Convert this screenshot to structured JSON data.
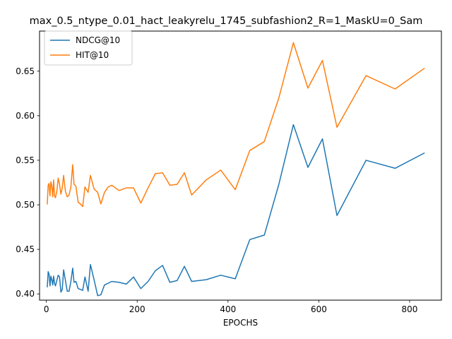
{
  "chart_data": {
    "type": "line",
    "title": "max_0.5_ntype_0.01_hact_leakyrelu_1745_subfashion2_R=1_MaskU=0_Sam",
    "xlabel": "EPOCHS",
    "ylabel": "",
    "xlim": [
      -15,
      870
    ],
    "ylim": [
      0.393,
      0.695
    ],
    "xticks": [
      0,
      200,
      400,
      600,
      800
    ],
    "yticks": [
      0.4,
      0.45,
      0.5,
      0.55,
      0.6,
      0.65
    ],
    "ytick_labels": [
      "0.40",
      "0.45",
      "0.50",
      "0.55",
      "0.60",
      "0.65"
    ],
    "grid": false,
    "legend_position": "top-left",
    "series": [
      {
        "name": "NDCG@10",
        "color": "#1f77b4",
        "points": [
          [
            2,
            0.408
          ],
          [
            4,
            0.425
          ],
          [
            6,
            0.422
          ],
          [
            8,
            0.409
          ],
          [
            10,
            0.42
          ],
          [
            12,
            0.416
          ],
          [
            14,
            0.41
          ],
          [
            16,
            0.42
          ],
          [
            18,
            0.412
          ],
          [
            20,
            0.409
          ],
          [
            23,
            0.415
          ],
          [
            26,
            0.421
          ],
          [
            29,
            0.419
          ],
          [
            32,
            0.402
          ],
          [
            35,
            0.405
          ],
          [
            38,
            0.427
          ],
          [
            42,
            0.415
          ],
          [
            46,
            0.403
          ],
          [
            50,
            0.403
          ],
          [
            54,
            0.414
          ],
          [
            58,
            0.429
          ],
          [
            61,
            0.413
          ],
          [
            65,
            0.414
          ],
          [
            70,
            0.406
          ],
          [
            75,
            0.405
          ],
          [
            80,
            0.404
          ],
          [
            85,
            0.419
          ],
          [
            92,
            0.403
          ],
          [
            97,
            0.433
          ],
          [
            105,
            0.416
          ],
          [
            113,
            0.398
          ],
          [
            120,
            0.399
          ],
          [
            128,
            0.41
          ],
          [
            144,
            0.414
          ],
          [
            160,
            0.413
          ],
          [
            176,
            0.411
          ],
          [
            192,
            0.419
          ],
          [
            208,
            0.406
          ],
          [
            224,
            0.414
          ],
          [
            240,
            0.426
          ],
          [
            256,
            0.432
          ],
          [
            272,
            0.413
          ],
          [
            288,
            0.415
          ],
          [
            304,
            0.431
          ],
          [
            320,
            0.414
          ],
          [
            352,
            0.416
          ],
          [
            384,
            0.421
          ],
          [
            416,
            0.417
          ],
          [
            448,
            0.461
          ],
          [
            480,
            0.466
          ],
          [
            512,
            0.523
          ],
          [
            544,
            0.59
          ],
          [
            576,
            0.542
          ],
          [
            608,
            0.574
          ],
          [
            640,
            0.488
          ],
          [
            704,
            0.55
          ],
          [
            768,
            0.541
          ],
          [
            832,
            0.558
          ]
        ]
      },
      {
        "name": "HIT@10",
        "color": "#ff7f0e",
        "points": [
          [
            2,
            0.501
          ],
          [
            4,
            0.522
          ],
          [
            6,
            0.524
          ],
          [
            8,
            0.51
          ],
          [
            10,
            0.526
          ],
          [
            12,
            0.521
          ],
          [
            14,
            0.509
          ],
          [
            16,
            0.528
          ],
          [
            18,
            0.51
          ],
          [
            20,
            0.508
          ],
          [
            23,
            0.515
          ],
          [
            26,
            0.53
          ],
          [
            29,
            0.523
          ],
          [
            32,
            0.512
          ],
          [
            35,
            0.519
          ],
          [
            38,
            0.533
          ],
          [
            42,
            0.515
          ],
          [
            46,
            0.509
          ],
          [
            50,
            0.511
          ],
          [
            54,
            0.52
          ],
          [
            58,
            0.545
          ],
          [
            61,
            0.523
          ],
          [
            65,
            0.521
          ],
          [
            70,
            0.503
          ],
          [
            75,
            0.501
          ],
          [
            80,
            0.498
          ],
          [
            85,
            0.52
          ],
          [
            92,
            0.514
          ],
          [
            97,
            0.533
          ],
          [
            105,
            0.518
          ],
          [
            113,
            0.514
          ],
          [
            120,
            0.501
          ],
          [
            128,
            0.514
          ],
          [
            136,
            0.52
          ],
          [
            144,
            0.522
          ],
          [
            160,
            0.516
          ],
          [
            176,
            0.519
          ],
          [
            192,
            0.519
          ],
          [
            208,
            0.502
          ],
          [
            224,
            0.519
          ],
          [
            240,
            0.535
          ],
          [
            256,
            0.536
          ],
          [
            272,
            0.522
          ],
          [
            288,
            0.523
          ],
          [
            304,
            0.536
          ],
          [
            320,
            0.511
          ],
          [
            352,
            0.528
          ],
          [
            384,
            0.539
          ],
          [
            416,
            0.517
          ],
          [
            448,
            0.561
          ],
          [
            480,
            0.571
          ],
          [
            512,
            0.62
          ],
          [
            544,
            0.682
          ],
          [
            576,
            0.631
          ],
          [
            608,
            0.662
          ],
          [
            640,
            0.587
          ],
          [
            704,
            0.645
          ],
          [
            768,
            0.63
          ],
          [
            832,
            0.653
          ]
        ]
      }
    ]
  }
}
